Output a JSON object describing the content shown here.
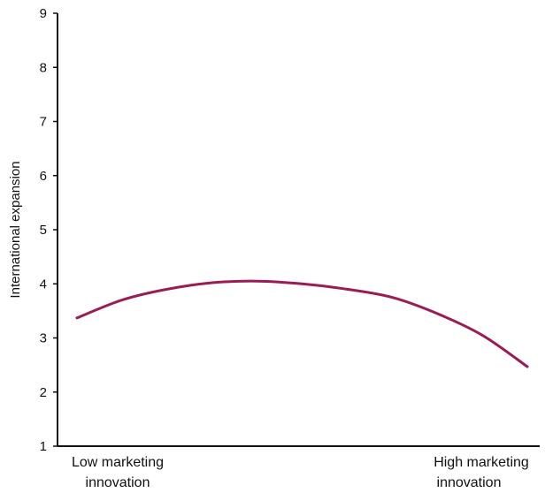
{
  "chart_data": {
    "type": "line",
    "title": "",
    "xlabel": "",
    "ylabel": "International expansion",
    "ylim": [
      1,
      9
    ],
    "yticks": [
      "1",
      "2",
      "3",
      "4",
      "5",
      "6",
      "7",
      "8",
      "9"
    ],
    "x_endpoint_labels": {
      "left": [
        "Low marketing",
        "innovation"
      ],
      "right": [
        "High marketing",
        "innovation"
      ]
    },
    "grid": false,
    "legend": "none",
    "line_color": "#9b1b54",
    "series": [
      {
        "x": [
          0,
          0.1,
          0.2,
          0.3,
          0.4,
          0.5,
          0.6,
          0.7,
          0.8,
          0.9,
          1.0
        ],
        "values": [
          3.37,
          3.7,
          3.9,
          4.02,
          4.05,
          4.0,
          3.9,
          3.75,
          3.45,
          3.05,
          2.47
        ]
      }
    ]
  }
}
